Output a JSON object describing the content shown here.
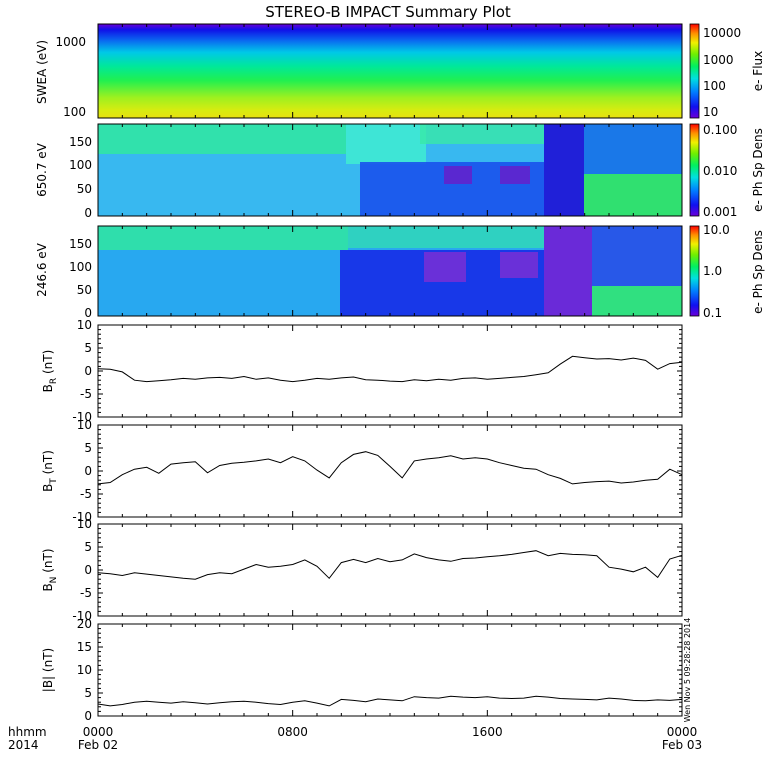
{
  "title": "STEREO-B IMPACT Summary Plot",
  "stamp": "Wen Nov  5 09:28:28 2014",
  "colors": {
    "axis": "#000000",
    "line": "#000000",
    "background": "#ffffff"
  },
  "chart_data": [
    {
      "id": "swea",
      "type": "heatmap",
      "ylabel": "SWEA (eV)",
      "y_scale": "log",
      "ylim": [
        90,
        2000
      ],
      "yticks": [
        "100",
        "1000"
      ],
      "colorbar": {
        "label": "e- Flux",
        "scale": "log",
        "range": [
          10,
          10000
        ],
        "ticks": [
          "10",
          "100",
          "1000",
          "10000"
        ]
      }
    },
    {
      "id": "pad650",
      "type": "heatmap",
      "ylabel": "650.7 eV",
      "ylim": [
        0,
        180
      ],
      "yticks": [
        "0",
        "50",
        "100",
        "150"
      ],
      "colorbar": {
        "label": "e- Ph Sp Dens",
        "scale": "log",
        "range": [
          0.001,
          0.1
        ],
        "ticks": [
          "0.001",
          "0.010",
          "0.100"
        ]
      }
    },
    {
      "id": "pad246",
      "type": "heatmap",
      "ylabel": "246.6 eV",
      "ylim": [
        0,
        180
      ],
      "yticks": [
        "0",
        "50",
        "100",
        "150"
      ],
      "colorbar": {
        "label": "e- Ph Sp Dens",
        "scale": "log",
        "range": [
          0.1,
          10
        ],
        "ticks": [
          "0.1",
          "1.0",
          "10.0"
        ]
      }
    },
    {
      "id": "br",
      "type": "line",
      "ylabel": "B",
      "ylabel_sub": "R",
      "yunit": "(nT)",
      "ylim": [
        -10,
        10
      ],
      "yticks": [
        "-10",
        "-5",
        "0",
        "5",
        "10"
      ],
      "x_hours": [
        0,
        0.5,
        1,
        1.5,
        2,
        2.5,
        3,
        3.5,
        4,
        4.5,
        5,
        5.5,
        6,
        6.5,
        7,
        7.5,
        8,
        8.5,
        9,
        9.5,
        10,
        10.5,
        11,
        11.5,
        12,
        12.5,
        13,
        13.5,
        14,
        14.5,
        15,
        15.5,
        16,
        16.5,
        17,
        17.5,
        18,
        18.5,
        19,
        19.5,
        20,
        20.5,
        21,
        21.5,
        22,
        22.5,
        23,
        23.5,
        24
      ],
      "values": [
        0.5,
        0.4,
        -0.2,
        -2.0,
        -2.3,
        -2.1,
        -1.9,
        -1.6,
        -1.8,
        -1.5,
        -1.4,
        -1.6,
        -1.2,
        -1.8,
        -1.5,
        -2.0,
        -2.3,
        -2.0,
        -1.6,
        -1.8,
        -1.5,
        -1.3,
        -1.9,
        -2.0,
        -2.2,
        -2.3,
        -1.9,
        -2.1,
        -1.8,
        -2.0,
        -1.6,
        -1.5,
        -1.8,
        -1.6,
        -1.4,
        -1.2,
        -0.8,
        -0.4,
        1.5,
        3.2,
        2.9,
        2.6,
        2.7,
        2.4,
        2.8,
        2.3,
        0.4,
        1.6,
        1.9
      ]
    },
    {
      "id": "bt",
      "type": "line",
      "ylabel": "B",
      "ylabel_sub": "T",
      "yunit": "(nT)",
      "ylim": [
        -10,
        10
      ],
      "yticks": [
        "-10",
        "-5",
        "0",
        "5",
        "10"
      ],
      "x_hours": [
        0,
        0.5,
        1,
        1.5,
        2,
        2.5,
        3,
        3.5,
        4,
        4.5,
        5,
        5.5,
        6,
        6.5,
        7,
        7.5,
        8,
        8.5,
        9,
        9.5,
        10,
        10.5,
        11,
        11.5,
        12,
        12.5,
        13,
        13.5,
        14,
        14.5,
        15,
        15.5,
        16,
        16.5,
        17,
        17.5,
        18,
        18.5,
        19,
        19.5,
        20,
        20.5,
        21,
        21.5,
        22,
        22.5,
        23,
        23.5,
        24
      ],
      "values": [
        -2.8,
        -2.5,
        -0.8,
        0.4,
        0.8,
        -0.5,
        1.5,
        1.8,
        2.0,
        -0.4,
        1.2,
        1.7,
        1.9,
        2.2,
        2.6,
        1.8,
        3.1,
        2.2,
        0.2,
        -1.5,
        1.8,
        3.6,
        4.2,
        3.4,
        1.0,
        -1.5,
        2.2,
        2.6,
        2.9,
        3.3,
        2.6,
        2.9,
        2.6,
        1.8,
        1.2,
        0.6,
        0.4,
        -0.8,
        -1.6,
        -2.8,
        -2.5,
        -2.3,
        -2.2,
        -2.6,
        -2.4,
        -2.0,
        -1.8,
        0.4,
        -0.8
      ]
    },
    {
      "id": "bn",
      "type": "line",
      "ylabel": "B",
      "ylabel_sub": "N",
      "yunit": "(nT)",
      "ylim": [
        -10,
        10
      ],
      "yticks": [
        "-10",
        "-5",
        "0",
        "5",
        "10"
      ],
      "x_hours": [
        0,
        0.5,
        1,
        1.5,
        2,
        2.5,
        3,
        3.5,
        4,
        4.5,
        5,
        5.5,
        6,
        6.5,
        7,
        7.5,
        8,
        8.5,
        9,
        9.5,
        10,
        10.5,
        11,
        11.5,
        12,
        12.5,
        13,
        13.5,
        14,
        14.5,
        15,
        15.5,
        16,
        16.5,
        17,
        17.5,
        18,
        18.5,
        19,
        19.5,
        20,
        20.5,
        21,
        21.5,
        22,
        22.5,
        23,
        23.5,
        24
      ],
      "values": [
        -0.6,
        -0.8,
        -1.2,
        -0.6,
        -0.9,
        -1.2,
        -1.5,
        -1.8,
        -2.0,
        -1.0,
        -0.6,
        -0.8,
        0.2,
        1.2,
        0.6,
        0.8,
        1.2,
        2.2,
        0.8,
        -1.8,
        1.6,
        2.3,
        1.6,
        2.5,
        1.8,
        2.2,
        3.5,
        2.7,
        2.2,
        1.9,
        2.5,
        2.6,
        2.9,
        3.1,
        3.4,
        3.8,
        4.2,
        3.1,
        3.6,
        3.4,
        3.3,
        3.1,
        0.6,
        0.2,
        -0.4,
        0.6,
        -1.6,
        2.4,
        3.2
      ]
    },
    {
      "id": "bmag",
      "type": "line",
      "ylabel": "|B|",
      "yunit": "(nT)",
      "ylim": [
        0,
        20
      ],
      "yticks": [
        "0",
        "5",
        "10",
        "15",
        "20"
      ],
      "x_hours": [
        0,
        0.5,
        1,
        1.5,
        2,
        2.5,
        3,
        3.5,
        4,
        4.5,
        5,
        5.5,
        6,
        6.5,
        7,
        7.5,
        8,
        8.5,
        9,
        9.5,
        10,
        10.5,
        11,
        11.5,
        12,
        12.5,
        13,
        13.5,
        14,
        14.5,
        15,
        15.5,
        16,
        16.5,
        17,
        17.5,
        18,
        18.5,
        19,
        19.5,
        20,
        20.5,
        21,
        21.5,
        22,
        22.5,
        23,
        23.5,
        24
      ],
      "values": [
        2.6,
        2.2,
        2.5,
        3.0,
        3.2,
        3.0,
        2.8,
        3.1,
        2.9,
        2.6,
        2.9,
        3.1,
        3.2,
        3.0,
        2.7,
        2.5,
        3.0,
        3.3,
        2.8,
        2.2,
        3.6,
        3.4,
        3.1,
        3.7,
        3.5,
        3.3,
        4.2,
        4.0,
        3.9,
        4.3,
        4.1,
        4.0,
        4.2,
        3.9,
        3.8,
        3.9,
        4.3,
        4.1,
        3.8,
        3.7,
        3.6,
        3.5,
        3.9,
        3.7,
        3.4,
        3.3,
        3.5,
        3.4,
        3.6
      ]
    }
  ],
  "x_axis": {
    "row1_label": "hhmm",
    "row2_label": "2014",
    "ticks": [
      {
        "hour": 0,
        "time": "0000",
        "date": "Feb 02"
      },
      {
        "hour": 8,
        "time": "0800",
        "date": ""
      },
      {
        "hour": 16,
        "time": "1600",
        "date": ""
      },
      {
        "hour": 24,
        "time": "0000",
        "date": "Feb 03"
      }
    ]
  }
}
